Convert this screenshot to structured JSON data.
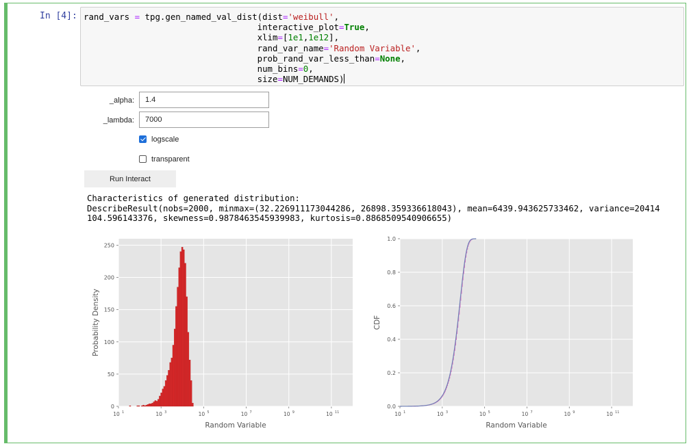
{
  "cell": {
    "prompt": "In [4]:",
    "code_lines": [
      [
        {
          "t": "rand_vars ",
          "c": "var"
        },
        {
          "t": "=",
          "c": "op"
        },
        {
          "t": " tpg.gen_named_val_dist(dist",
          "c": "var"
        },
        {
          "t": "=",
          "c": "op"
        },
        {
          "t": "'weibull'",
          "c": "str"
        },
        {
          "t": ",",
          "c": "var"
        }
      ],
      [
        {
          "t": "                                  interactive_plot",
          "c": "var"
        },
        {
          "t": "=",
          "c": "op"
        },
        {
          "t": "True",
          "c": "kw"
        },
        {
          "t": ",",
          "c": "var"
        }
      ],
      [
        {
          "t": "                                  xlim",
          "c": "var"
        },
        {
          "t": "=",
          "c": "op"
        },
        {
          "t": "[",
          "c": "var"
        },
        {
          "t": "1e1",
          "c": "num"
        },
        {
          "t": ",",
          "c": "var"
        },
        {
          "t": "1e12",
          "c": "num"
        },
        {
          "t": "],",
          "c": "var"
        }
      ],
      [
        {
          "t": "                                  rand_var_name",
          "c": "var"
        },
        {
          "t": "=",
          "c": "op"
        },
        {
          "t": "'Random Variable'",
          "c": "str"
        },
        {
          "t": ",",
          "c": "var"
        }
      ],
      [
        {
          "t": "                                  prob_rand_var_less_than",
          "c": "var"
        },
        {
          "t": "=",
          "c": "op"
        },
        {
          "t": "None",
          "c": "kw"
        },
        {
          "t": ",",
          "c": "var"
        }
      ],
      [
        {
          "t": "                                  num_bins",
          "c": "var"
        },
        {
          "t": "=",
          "c": "op"
        },
        {
          "t": "0",
          "c": "num"
        },
        {
          "t": ",",
          "c": "var"
        }
      ],
      [
        {
          "t": "                                  size",
          "c": "var"
        },
        {
          "t": "=",
          "c": "op"
        },
        {
          "t": "NUM_DEMANDS)",
          "c": "var"
        }
      ]
    ]
  },
  "widgets": {
    "alpha_label": "_alpha:",
    "alpha_value": "1.4",
    "lambda_label": "_lambda:",
    "lambda_value": "7000",
    "logscale_label": "logscale",
    "logscale_checked": true,
    "transparent_label": "transparent",
    "transparent_checked": false,
    "run_button": "Run Interact"
  },
  "output": {
    "line1": "Characteristics of generated distribution:",
    "line2": "DescribeResult(nobs=2000, minmax=(32.226911173044286, 26898.359336618043), mean=6439.943625733462, variance=20414",
    "line3": "104.596143376, skewness=0.9878463545939983, kurtosis=0.8868509540906655)"
  },
  "colors": {
    "accent": "#66bb6a",
    "hist_fill": "#d62728",
    "cdf_step": "#e377c2",
    "cdf_line": "#6e7fb5",
    "plot_bg": "#e5e5e5"
  },
  "chart_data": [
    {
      "type": "bar",
      "xscale": "log",
      "xlim": [
        10,
        1000000000000
      ],
      "ylim": [
        0,
        260
      ],
      "xlabel": "Random Variable",
      "ylabel": "Probability Density",
      "xticks": [
        10,
        1000,
        100000,
        10000000,
        1000000000,
        100000000000
      ],
      "xtick_labels": [
        "10",
        "10",
        "10",
        "10",
        "10",
        "10"
      ],
      "xtick_exponents": [
        "1",
        "3",
        "5",
        "7",
        "9",
        "11"
      ],
      "yticks": [
        0,
        50,
        100,
        150,
        200,
        250
      ],
      "ytick_labels": [
        "0",
        "50",
        "100",
        "150",
        "200",
        "250"
      ],
      "grid": true,
      "bins_log10": [
        1.51,
        1.58,
        1.65,
        1.72,
        1.79,
        1.86,
        1.93,
        2.0,
        2.07,
        2.14,
        2.21,
        2.28,
        2.35,
        2.42,
        2.49,
        2.56,
        2.63,
        2.7,
        2.77,
        2.84,
        2.91,
        2.98,
        3.05,
        3.12,
        3.19,
        3.26,
        3.33,
        3.4,
        3.47,
        3.54,
        3.61,
        3.68,
        3.75,
        3.82,
        3.89,
        3.96,
        4.03,
        4.1,
        4.17,
        4.24,
        4.31,
        4.38,
        4.45
      ],
      "values": [
        1,
        0,
        0,
        0,
        0,
        1,
        1,
        0,
        1,
        2,
        1,
        2,
        3,
        4,
        4,
        5,
        7,
        9,
        8,
        11,
        16,
        21,
        27,
        31,
        40,
        48,
        56,
        68,
        75,
        95,
        120,
        155,
        185,
        215,
        240,
        247,
        243,
        222,
        170,
        115,
        72,
        40,
        5
      ]
    },
    {
      "type": "line",
      "xscale": "log",
      "xlim": [
        10,
        1000000000000
      ],
      "ylim": [
        0,
        1
      ],
      "xlabel": "Random Variable",
      "ylabel": "CDF",
      "xticks": [
        10,
        1000,
        100000,
        10000000,
        1000000000,
        100000000000
      ],
      "xtick_labels": [
        "10",
        "10",
        "10",
        "10",
        "10",
        "10"
      ],
      "xtick_exponents": [
        "1",
        "3",
        "5",
        "7",
        "9",
        "11"
      ],
      "yticks": [
        0,
        0.2,
        0.4,
        0.6,
        0.8,
        1.0
      ],
      "ytick_labels": [
        "0.0",
        "0.2",
        "0.4",
        "0.6",
        "0.8",
        "1.0"
      ],
      "grid": true,
      "weibull_alpha": 1.4,
      "weibull_lambda": 7000
    }
  ]
}
